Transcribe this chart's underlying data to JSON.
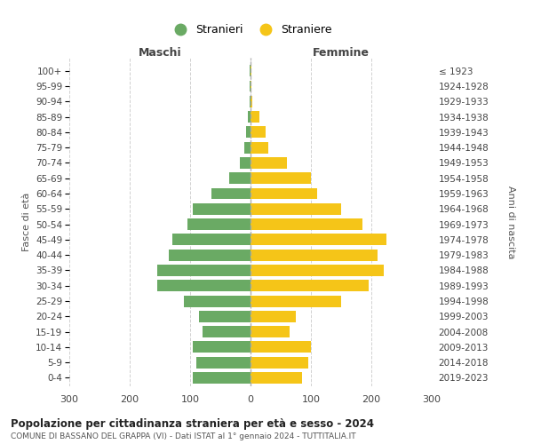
{
  "age_groups": [
    "0-4",
    "5-9",
    "10-14",
    "15-19",
    "20-24",
    "25-29",
    "30-34",
    "35-39",
    "40-44",
    "45-49",
    "50-54",
    "55-59",
    "60-64",
    "65-69",
    "70-74",
    "75-79",
    "80-84",
    "85-89",
    "90-94",
    "95-99",
    "100+"
  ],
  "birth_years": [
    "2019-2023",
    "2014-2018",
    "2009-2013",
    "2004-2008",
    "1999-2003",
    "1994-1998",
    "1989-1993",
    "1984-1988",
    "1979-1983",
    "1974-1978",
    "1969-1973",
    "1964-1968",
    "1959-1963",
    "1954-1958",
    "1949-1953",
    "1944-1948",
    "1939-1943",
    "1934-1938",
    "1929-1933",
    "1924-1928",
    "≤ 1923"
  ],
  "males": [
    95,
    90,
    95,
    80,
    85,
    110,
    155,
    155,
    135,
    130,
    105,
    95,
    65,
    35,
    18,
    10,
    8,
    5,
    2,
    1,
    1
  ],
  "females": [
    85,
    95,
    100,
    65,
    75,
    150,
    195,
    220,
    210,
    225,
    185,
    150,
    110,
    100,
    60,
    30,
    25,
    15,
    3,
    2,
    1
  ],
  "male_color": "#6aaa64",
  "female_color": "#f5c518",
  "bar_height": 0.75,
  "xlim": 300,
  "title": "Popolazione per cittadinanza straniera per età e sesso - 2024",
  "subtitle": "COMUNE DI BASSANO DEL GRAPPA (VI) - Dati ISTAT al 1° gennaio 2024 - TUTTITALIA.IT",
  "ylabel_left": "Fasce di età",
  "ylabel_right": "Anni di nascita",
  "xlabel_left": "Maschi",
  "xlabel_right": "Femmine",
  "legend_stranieri": "Stranieri",
  "legend_straniere": "Straniere",
  "background_color": "#ffffff",
  "grid_color": "#cccccc"
}
